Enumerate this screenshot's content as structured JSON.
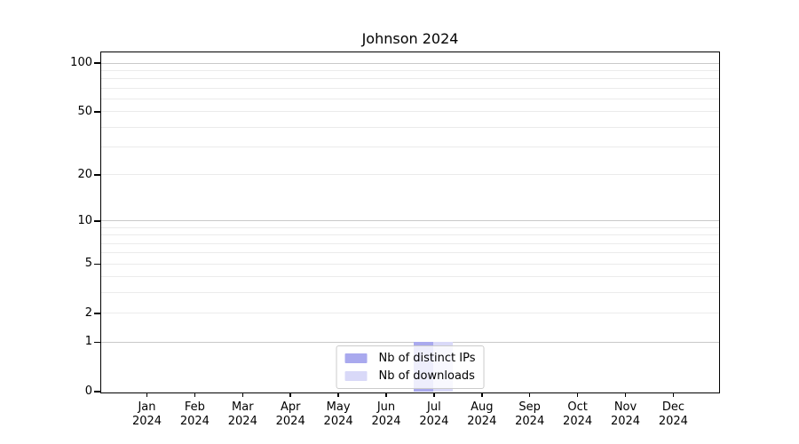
{
  "chart_data": {
    "type": "bar",
    "title": "Johnson 2024",
    "categories": [
      "Jan",
      "Feb",
      "Mar",
      "Apr",
      "May",
      "Jun",
      "Jul",
      "Aug",
      "Sep",
      "Oct",
      "Nov",
      "Dec"
    ],
    "x_axis": {
      "label_line2": "2024"
    },
    "series": [
      {
        "name": "Nb of distinct IPs",
        "color": "#a9a9ee",
        "values": [
          0,
          0,
          0,
          0,
          0,
          0,
          1,
          0,
          0,
          0,
          0,
          0
        ]
      },
      {
        "name": "Nb of downloads",
        "color": "#d9d9f8",
        "values": [
          0,
          0,
          0,
          0,
          0,
          0,
          1,
          0,
          0,
          0,
          0,
          0
        ]
      }
    ],
    "y_axis": {
      "scale": "log1p",
      "ticks": [
        0,
        1,
        2,
        5,
        10,
        20,
        50,
        100
      ],
      "major_gridlines": [
        1,
        10,
        100
      ],
      "minor_gridlines": [
        2,
        3,
        4,
        5,
        6,
        7,
        8,
        9,
        20,
        30,
        40,
        50,
        60,
        70,
        80,
        90
      ],
      "ylim": [
        0,
        116
      ]
    },
    "legend": {
      "position": "lower center"
    },
    "colors": {
      "axis": "#000000",
      "major_grid": "#c9c9c9",
      "minor_grid": "#ebebeb",
      "background": "#ffffff"
    }
  }
}
